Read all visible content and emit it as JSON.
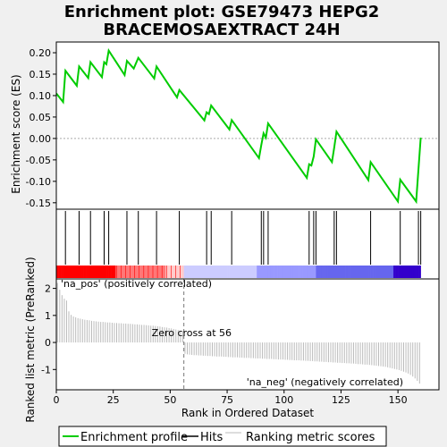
{
  "chart_data": {
    "type": "line",
    "title_line1": "Enrichment plot: GSE79473 HEPG2",
    "title_line2": "BRACEMOSAEXTRACT 24H",
    "es_panel": {
      "ylabel": "Enrichment score (ES)",
      "ylim": [
        -0.165,
        0.225
      ],
      "yticks": [
        -0.15,
        -0.1,
        -0.05,
        0.0,
        0.05,
        0.1,
        0.15,
        0.2
      ],
      "ytick_labels": [
        "-0.15",
        "-0.10",
        "-0.05",
        "0.00",
        "0.05",
        "0.10",
        "0.15",
        "0.20"
      ],
      "color": "#00cc00",
      "points": [
        [
          0,
          0.105
        ],
        [
          3,
          0.085
        ],
        [
          4,
          0.158
        ],
        [
          9,
          0.123
        ],
        [
          10,
          0.168
        ],
        [
          14,
          0.141
        ],
        [
          15,
          0.178
        ],
        [
          20,
          0.143
        ],
        [
          21,
          0.178
        ],
        [
          22,
          0.173
        ],
        [
          23,
          0.205
        ],
        [
          30,
          0.148
        ],
        [
          31,
          0.181
        ],
        [
          34,
          0.163
        ],
        [
          36,
          0.188
        ],
        [
          43,
          0.14
        ],
        [
          44,
          0.168
        ],
        [
          53,
          0.096
        ],
        [
          54,
          0.113
        ],
        [
          65,
          0.042
        ],
        [
          66,
          0.061
        ],
        [
          67,
          0.057
        ],
        [
          68,
          0.077
        ],
        [
          76,
          0.021
        ],
        [
          77,
          0.043
        ],
        [
          89,
          -0.046
        ],
        [
          90,
          -0.015
        ],
        [
          91,
          0.012
        ],
        [
          92,
          0.002
        ],
        [
          93,
          0.035
        ],
        [
          110,
          -0.092
        ],
        [
          111,
          -0.06
        ],
        [
          112,
          -0.063
        ],
        [
          113,
          -0.042
        ],
        [
          114,
          -0.002
        ],
        [
          121,
          -0.055
        ],
        [
          122,
          -0.022
        ],
        [
          123,
          0.016
        ],
        [
          137,
          -0.097
        ],
        [
          138,
          -0.055
        ],
        [
          150,
          -0.147
        ],
        [
          151,
          -0.096
        ],
        [
          158,
          -0.147
        ],
        [
          160,
          0.002
        ]
      ]
    },
    "hits_panel": {
      "hit_ranks": [
        4,
        10,
        15,
        21,
        23,
        31,
        36,
        44,
        54,
        66,
        68,
        77,
        90,
        91,
        93,
        111,
        113,
        114,
        122,
        123,
        138,
        151,
        159,
        160
      ],
      "ranking_bar_colors": [
        "#ff0000",
        "#ff7777",
        "#ffcccc",
        "#ccccff",
        "#9999ff",
        "#6666ee",
        "#3300cc"
      ]
    },
    "metric_panel": {
      "ylabel": "Ranked list metric (PreRanked)",
      "ylim": [
        -1.75,
        2.35
      ],
      "yticks": [
        -1,
        0,
        1,
        2
      ],
      "ytick_labels": [
        "-1",
        "0",
        "1",
        "2"
      ],
      "zero_cross_label": "Zero cross at 56",
      "pos_label": "'na_pos' (positively correlated)",
      "neg_label": "'na_neg' (negatively correlated)",
      "pos_color": "#cc0000",
      "neg_color": "#0000cc",
      "metric_values": [
        2.2,
        1.95,
        1.75,
        1.62,
        1.55,
        1.15,
        1.02,
        0.96,
        0.93,
        0.9,
        0.88,
        0.86,
        0.84,
        0.83,
        0.82,
        0.8,
        0.79,
        0.78,
        0.77,
        0.76,
        0.76,
        0.75,
        0.74,
        0.74,
        0.73,
        0.72,
        0.72,
        0.71,
        0.71,
        0.7,
        0.7,
        0.69,
        0.69,
        0.68,
        0.67,
        0.67,
        0.66,
        0.65,
        0.65,
        0.64,
        0.63,
        0.62,
        0.62,
        0.61,
        0.6,
        0.59,
        0.57,
        0.56,
        0.55,
        0.53,
        0.52,
        0.5,
        0.48,
        0.46,
        0.44,
        0.4,
        -0.42,
        -0.44,
        -0.45,
        -0.46,
        -0.47,
        -0.47,
        -0.48,
        -0.48,
        -0.49,
        -0.49,
        -0.5,
        -0.5,
        -0.51,
        -0.51,
        -0.52,
        -0.52,
        -0.52,
        -0.53,
        -0.53,
        -0.54,
        -0.54,
        -0.55,
        -0.55,
        -0.55,
        -0.56,
        -0.56,
        -0.57,
        -0.57,
        -0.57,
        -0.58,
        -0.58,
        -0.59,
        -0.59,
        -0.59,
        -0.6,
        -0.6,
        -0.61,
        -0.61,
        -0.61,
        -0.62,
        -0.62,
        -0.63,
        -0.63,
        -0.63,
        -0.64,
        -0.64,
        -0.65,
        -0.65,
        -0.66,
        -0.66,
        -0.66,
        -0.67,
        -0.67,
        -0.68,
        -0.68,
        -0.69,
        -0.69,
        -0.7,
        -0.7,
        -0.71,
        -0.71,
        -0.72,
        -0.72,
        -0.73,
        -0.73,
        -0.74,
        -0.74,
        -0.75,
        -0.75,
        -0.76,
        -0.76,
        -0.77,
        -0.77,
        -0.78,
        -0.78,
        -0.79,
        -0.8,
        -0.8,
        -0.81,
        -0.82,
        -0.82,
        -0.83,
        -0.84,
        -0.85,
        -0.86,
        -0.87,
        -0.88,
        -0.89,
        -0.9,
        -0.92,
        -0.94,
        -0.96,
        -0.98,
        -1.0,
        -1.02,
        -1.05,
        -1.08,
        -1.11,
        -1.15,
        -1.2,
        -1.26,
        -1.33,
        -1.42,
        -1.52
      ]
    },
    "x_axis": {
      "xlabel": "Rank in Ordered Dataset",
      "xlim": [
        0,
        168
      ],
      "xticks": [
        0,
        25,
        50,
        75,
        100,
        125,
        150
      ],
      "xtick_labels": [
        "0",
        "25",
        "50",
        "75",
        "100",
        "125",
        "150"
      ],
      "zero_cross_rank": 56
    },
    "legend": {
      "placement": "bottom",
      "entries": [
        {
          "label": "Enrichment profile",
          "color": "#00cc00"
        },
        {
          "label": "Hits",
          "color": "#000000"
        },
        {
          "label": "Ranking metric scores",
          "color": "#bbbbbb"
        }
      ]
    }
  }
}
